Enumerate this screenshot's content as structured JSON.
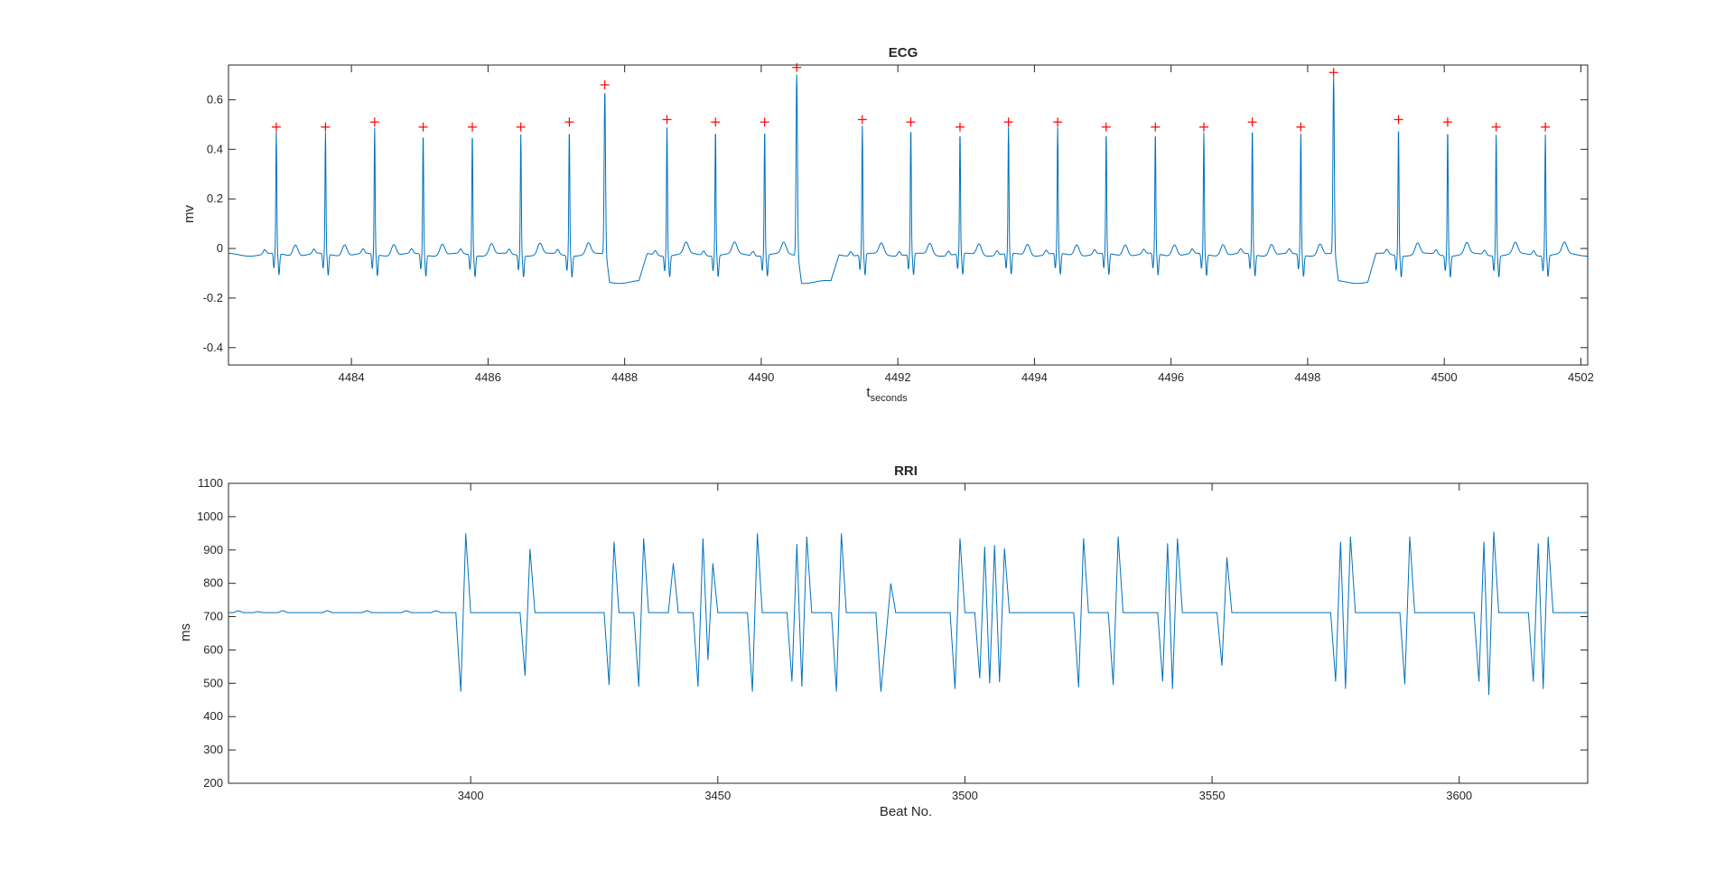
{
  "chart_data": [
    {
      "type": "line",
      "title": "ECG",
      "xlabel": "t",
      "xlabel_subscript": "seconds",
      "ylabel": "mv",
      "xlim": [
        4482.2,
        4502.1
      ],
      "ylim": [
        -0.47,
        0.74
      ],
      "xticks": [
        4484,
        4486,
        4488,
        4490,
        4492,
        4494,
        4496,
        4498,
        4500,
        4502
      ],
      "yticks": [
        -0.4,
        -0.2,
        0,
        0.2,
        0.4,
        0.6
      ],
      "line_color": "#0072BD",
      "marker_color": "#FF0000",
      "grid": false,
      "beats": [
        {
          "t": 4482.9,
          "peak": 0.49,
          "ectopic": false
        },
        {
          "t": 4483.62,
          "peak": 0.49,
          "ectopic": false
        },
        {
          "t": 4484.34,
          "peak": 0.51,
          "ectopic": false
        },
        {
          "t": 4485.05,
          "peak": 0.49,
          "ectopic": false
        },
        {
          "t": 4485.77,
          "peak": 0.49,
          "ectopic": false
        },
        {
          "t": 4486.48,
          "peak": 0.49,
          "ectopic": false
        },
        {
          "t": 4487.19,
          "peak": 0.51,
          "ectopic": false
        },
        {
          "t": 4487.71,
          "peak": 0.66,
          "ectopic": true
        },
        {
          "t": 4488.62,
          "peak": 0.52,
          "ectopic": false
        },
        {
          "t": 4489.33,
          "peak": 0.51,
          "ectopic": false
        },
        {
          "t": 4490.05,
          "peak": 0.51,
          "ectopic": false
        },
        {
          "t": 4490.52,
          "peak": 0.73,
          "ectopic": true
        },
        {
          "t": 4491.48,
          "peak": 0.52,
          "ectopic": false
        },
        {
          "t": 4492.19,
          "peak": 0.51,
          "ectopic": false
        },
        {
          "t": 4492.91,
          "peak": 0.49,
          "ectopic": false
        },
        {
          "t": 4493.62,
          "peak": 0.51,
          "ectopic": false
        },
        {
          "t": 4494.34,
          "peak": 0.51,
          "ectopic": false
        },
        {
          "t": 4495.05,
          "peak": 0.49,
          "ectopic": false
        },
        {
          "t": 4495.77,
          "peak": 0.49,
          "ectopic": false
        },
        {
          "t": 4496.48,
          "peak": 0.49,
          "ectopic": false
        },
        {
          "t": 4497.19,
          "peak": 0.51,
          "ectopic": false
        },
        {
          "t": 4497.9,
          "peak": 0.49,
          "ectopic": false
        },
        {
          "t": 4498.38,
          "peak": 0.71,
          "ectopic": true
        },
        {
          "t": 4499.33,
          "peak": 0.52,
          "ectopic": false
        },
        {
          "t": 4500.05,
          "peak": 0.51,
          "ectopic": false
        },
        {
          "t": 4500.76,
          "peak": 0.49,
          "ectopic": false
        },
        {
          "t": 4501.48,
          "peak": 0.49,
          "ectopic": false
        }
      ]
    },
    {
      "type": "line",
      "title": "RRI",
      "xlabel": "Beat No.",
      "ylabel": "ms",
      "xlim": [
        3351,
        3626
      ],
      "ylim": [
        200,
        1100
      ],
      "xticks": [
        3400,
        3450,
        3500,
        3550,
        3600
      ],
      "yticks": [
        200,
        300,
        400,
        500,
        600,
        700,
        800,
        900,
        1000,
        1100
      ],
      "line_color": "#0072BD",
      "grid": false,
      "baseline_ms": 712,
      "x_start": 3351,
      "x_end": 3626,
      "bumps": [
        [
          3353,
          718
        ],
        [
          3357,
          715
        ],
        [
          3362,
          718
        ],
        [
          3371,
          718
        ],
        [
          3379,
          718
        ],
        [
          3387,
          718
        ],
        [
          3393,
          718
        ]
      ],
      "events": [
        [
          3398,
          475,
          950
        ],
        [
          3411,
          523,
          903
        ],
        [
          3428,
          495,
          925
        ],
        [
          3434,
          490,
          935
        ],
        [
          3441,
          860,
          0
        ],
        [
          3446,
          490,
          935
        ],
        [
          3448,
          570,
          860
        ],
        [
          3457,
          475,
          950
        ],
        [
          3465,
          505,
          918
        ],
        [
          3467,
          490,
          940
        ],
        [
          3474,
          475,
          950
        ],
        [
          3483,
          475,
          940
        ],
        [
          3484,
          635,
          800
        ],
        [
          3498,
          483,
          935
        ],
        [
          3503,
          515,
          910
        ],
        [
          3505,
          500,
          915
        ],
        [
          3507,
          503,
          905
        ],
        [
          3523,
          488,
          935
        ],
        [
          3530,
          495,
          940
        ],
        [
          3540,
          505,
          920
        ],
        [
          3542,
          483,
          935
        ],
        [
          3552,
          553,
          878
        ],
        [
          3575,
          505,
          925
        ],
        [
          3577,
          483,
          940
        ],
        [
          3589,
          497,
          940
        ],
        [
          3604,
          505,
          925
        ],
        [
          3606,
          465,
          955
        ],
        [
          3615,
          505,
          920
        ],
        [
          3617,
          483,
          940
        ]
      ]
    }
  ]
}
